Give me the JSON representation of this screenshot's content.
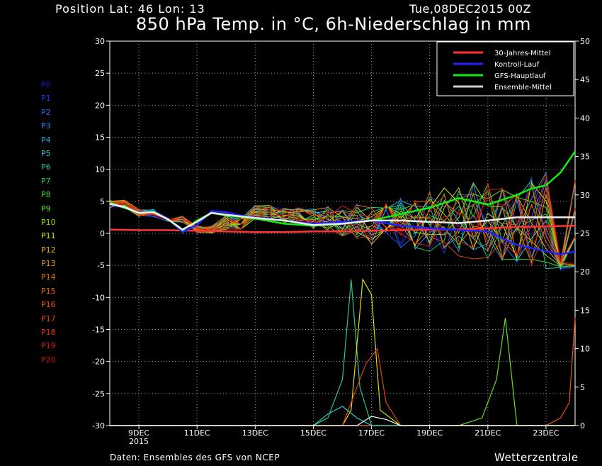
{
  "header": {
    "position": "Position   Lat: 46 Lon: 13",
    "datetime": "Tue,08DEC2015 00Z",
    "title": "850 hPa Temp. in °C, 6h-Niederschlag in mm"
  },
  "footer": {
    "source": "Daten: Ensembles des GFS von NCEP",
    "brand": "Wetterzentrale"
  },
  "members": [
    {
      "label": "P0",
      "color": "#1a1acc"
    },
    {
      "label": "P1",
      "color": "#1e3ee6"
    },
    {
      "label": "P2",
      "color": "#2266ee"
    },
    {
      "label": "P3",
      "color": "#2a8ae8"
    },
    {
      "label": "P4",
      "color": "#33a8e0"
    },
    {
      "label": "P5",
      "color": "#33ccd6"
    },
    {
      "label": "P6",
      "color": "#22cc88"
    },
    {
      "label": "P7",
      "color": "#22cc55"
    },
    {
      "label": "P8",
      "color": "#33dd33"
    },
    {
      "label": "P9",
      "color": "#66dd22"
    },
    {
      "label": "P10",
      "color": "#99dd11"
    },
    {
      "label": "P11",
      "color": "#dddd11"
    },
    {
      "label": "P12",
      "color": "#ddbb11"
    },
    {
      "label": "P13",
      "color": "#dd9911"
    },
    {
      "label": "P14",
      "color": "#dd7711"
    },
    {
      "label": "P15",
      "color": "#ee6611"
    },
    {
      "label": "P16",
      "color": "#ee5511"
    },
    {
      "label": "P17",
      "color": "#dd4411"
    },
    {
      "label": "P18",
      "color": "#dd3311"
    },
    {
      "label": "P19",
      "color": "#cc2211"
    },
    {
      "label": "P20",
      "color": "#bb1111"
    }
  ],
  "chart_data": {
    "type": "line",
    "grid": true,
    "legend_position": "top-right",
    "y_left": {
      "min": -30,
      "max": 30,
      "ticks": [
        30,
        25,
        20,
        15,
        10,
        5,
        0,
        -5,
        -10,
        -15,
        -20,
        -25,
        -30
      ]
    },
    "y_right": {
      "min": 0,
      "max": 50,
      "ticks": [
        50,
        45,
        40,
        35,
        30,
        25,
        20,
        15,
        10,
        5,
        0
      ]
    },
    "x_range_days": [
      8,
      24
    ],
    "x_ticks": [
      {
        "day": 9,
        "label": "9DEC",
        "sub": "2015"
      },
      {
        "day": 11,
        "label": "11DEC",
        "sub": ""
      },
      {
        "day": 13,
        "label": "13DEC",
        "sub": ""
      },
      {
        "day": 15,
        "label": "15DEC",
        "sub": ""
      },
      {
        "day": 17,
        "label": "17DEC",
        "sub": ""
      },
      {
        "day": 19,
        "label": "19DEC",
        "sub": ""
      },
      {
        "day": 21,
        "label": "21DEC",
        "sub": ""
      },
      {
        "day": 23,
        "label": "23DEC",
        "sub": ""
      }
    ],
    "legend": [
      {
        "name": "30-Jahres-Mittel",
        "color": "#ff3333"
      },
      {
        "name": "Kontroll-Lauf",
        "color": "#2222ff"
      },
      {
        "name": "GFS-Hauptlauf",
        "color": "#11ee11"
      },
      {
        "name": "Ensemble-Mittel",
        "color": "#cccccc"
      }
    ],
    "series": [
      {
        "name": "30-Jahres-Mittel",
        "color": "#ff3333",
        "width": 2.5,
        "x": [
          8,
          9,
          10,
          11,
          12,
          13,
          14,
          15,
          16,
          17,
          18,
          19,
          20,
          21,
          22,
          23,
          24
        ],
        "y": [
          0.6,
          0.5,
          0.5,
          0.4,
          0.3,
          0.2,
          0.2,
          0.3,
          0.3,
          0.4,
          0.5,
          0.6,
          0.6,
          0.8,
          1.0,
          1.1,
          1.2
        ]
      },
      {
        "name": "Kontroll-Lauf",
        "color": "#2222ff",
        "width": 2.5,
        "x": [
          8,
          8.5,
          9,
          9.5,
          10,
          10.5,
          11,
          11.5,
          12,
          12.5,
          13,
          14,
          15,
          16,
          17,
          18,
          19,
          20,
          21,
          21.5,
          22,
          22.5,
          23,
          23.5,
          24
        ],
        "y": [
          4.5,
          4,
          3.3,
          3.5,
          2.3,
          0.2,
          1.3,
          3.5,
          3.3,
          2.8,
          2.5,
          2,
          1.5,
          1.8,
          2,
          1.2,
          0.8,
          0.5,
          0.3,
          -0.8,
          -1.8,
          -2.3,
          -2.8,
          -3.3,
          -2.8
        ]
      },
      {
        "name": "GFS-Hauptlauf",
        "color": "#11ee11",
        "width": 2.5,
        "x": [
          8,
          8.5,
          9,
          9.5,
          10,
          10.5,
          11,
          11.5,
          12,
          13,
          14,
          15,
          16,
          17,
          18,
          19,
          20,
          21,
          22,
          22.5,
          23,
          23.5,
          24
        ],
        "y": [
          4.8,
          4,
          3.2,
          3.4,
          2.2,
          0.5,
          2,
          3.2,
          2.8,
          2.3,
          1.5,
          1.2,
          1.5,
          2,
          3,
          4,
          5.5,
          4.5,
          6,
          7,
          7.5,
          9.5,
          12.8
        ]
      },
      {
        "name": "Ensemble-Mittel",
        "color": "#eeeeee",
        "width": 2.5,
        "x": [
          8,
          8.5,
          9,
          9.5,
          10,
          10.5,
          11,
          11.5,
          12,
          13,
          14,
          15,
          16,
          17,
          18,
          19,
          20,
          21,
          22,
          23,
          24
        ],
        "y": [
          4.6,
          4.1,
          3.2,
          3.3,
          2.2,
          0.6,
          1.8,
          3.2,
          2.9,
          2.4,
          2,
          1.3,
          1.5,
          2,
          2,
          1.8,
          1.6,
          2,
          2.5,
          2.5,
          2.5
        ]
      }
    ],
    "precip_series": [
      {
        "color": "#22cc88",
        "x": [
          8,
          15,
          15.5,
          16,
          16.3,
          16.6,
          17,
          24
        ],
        "y": [
          0,
          0,
          1,
          6,
          19,
          5,
          0,
          0
        ]
      },
      {
        "color": "#dddd11",
        "x": [
          8,
          16,
          16.3,
          16.7,
          17,
          17.3,
          18,
          24
        ],
        "y": [
          0,
          0,
          2,
          19,
          17,
          2,
          0,
          0
        ]
      },
      {
        "color": "#dd4411",
        "x": [
          8,
          16,
          16.5,
          16.8,
          17.2,
          17.5,
          18,
          24
        ],
        "y": [
          0,
          0,
          5,
          8,
          10,
          3,
          0,
          0
        ]
      },
      {
        "color": "#66dd22",
        "x": [
          8,
          20,
          20.8,
          21,
          21.3,
          21.6,
          22,
          24
        ],
        "y": [
          0,
          0,
          1,
          3,
          6,
          14,
          0,
          0
        ]
      },
      {
        "color": "#ee5511",
        "x": [
          8,
          23,
          23.5,
          23.8,
          24
        ],
        "y": [
          0,
          0,
          1,
          3,
          14
        ]
      },
      {
        "color": "#33ccd6",
        "x": [
          8,
          15,
          15.5,
          16,
          16.5,
          17,
          24
        ],
        "y": [
          0,
          0,
          1.5,
          2.5,
          1,
          0,
          0
        ]
      },
      {
        "color": "#ffffff",
        "x": [
          8,
          16.5,
          17,
          17.5,
          18,
          24
        ],
        "y": [
          0,
          0,
          1.2,
          0.8,
          0,
          0
        ]
      }
    ]
  }
}
